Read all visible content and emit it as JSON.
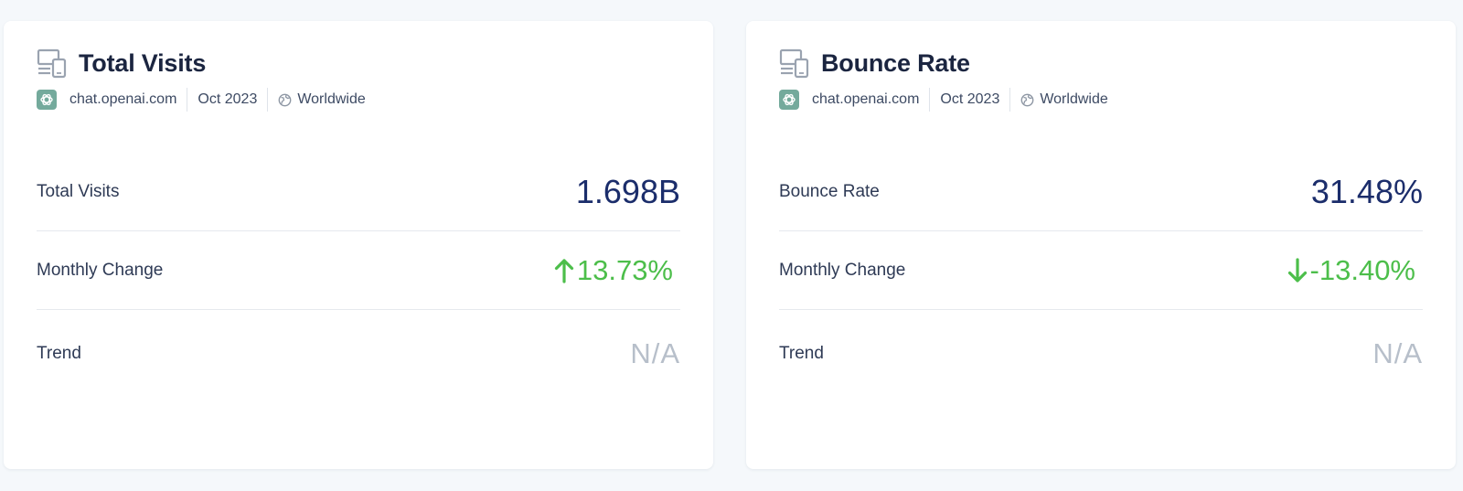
{
  "cards": [
    {
      "title": "Total Visits",
      "icon": "devices-icon",
      "meta": {
        "site": "chat.openai.com",
        "period": "Oct 2023",
        "region": "Worldwide"
      },
      "metrics": {
        "primary_label": "Total Visits",
        "primary_value": "1.698B",
        "change_label": "Monthly Change",
        "change_value": "13.73%",
        "change_direction": "up",
        "trend_label": "Trend",
        "trend_value": "N/A"
      }
    },
    {
      "title": "Bounce Rate",
      "icon": "devices-icon",
      "meta": {
        "site": "chat.openai.com",
        "period": "Oct 2023",
        "region": "Worldwide"
      },
      "metrics": {
        "primary_label": "Bounce Rate",
        "primary_value": "31.48%",
        "change_label": "Monthly Change",
        "change_value": "-13.40%",
        "change_direction": "down",
        "trend_label": "Trend",
        "trend_value": "N/A"
      }
    }
  ],
  "colors": {
    "background": "#f5f8fb",
    "card": "#ffffff",
    "title": "#1b2540",
    "value": "#1b2d6b",
    "positive": "#4cbe4a",
    "muted": "#b7bfca",
    "favicon": "#74aa9c"
  }
}
